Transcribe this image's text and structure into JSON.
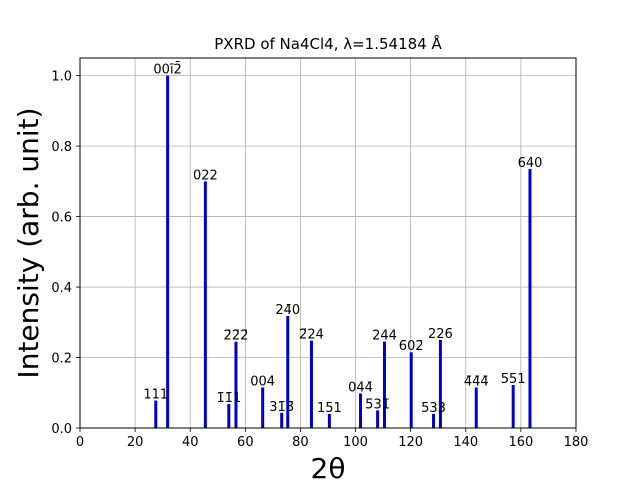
{
  "chart_data": {
    "type": "bar",
    "title": "PXRD of Na4Cl4, λ=1.54184 Å",
    "xlabel": "2θ",
    "ylabel": "Intensity (arb. unit)",
    "xlim": [
      0,
      180
    ],
    "ylim": [
      0,
      1.05
    ],
    "xticks": [
      0,
      20,
      40,
      60,
      80,
      100,
      120,
      140,
      160,
      180
    ],
    "yticks": [
      0.0,
      0.2,
      0.4,
      0.6,
      0.8,
      1.0
    ],
    "xtick_labels": [
      "0",
      "20",
      "40",
      "60",
      "80",
      "100",
      "120",
      "140",
      "160",
      "180"
    ],
    "ytick_labels": [
      "0.0",
      "0.2",
      "0.4",
      "0.6",
      "0.8",
      "1.0"
    ],
    "grid": true,
    "bar_color": "#0000cc",
    "peaks": [
      {
        "x": 27.5,
        "y": 0.078,
        "label": "111"
      },
      {
        "x": 31.8,
        "y": 1.0,
        "label": "00ī2̄"
      },
      {
        "x": 45.5,
        "y": 0.7,
        "label": "022"
      },
      {
        "x": 54.0,
        "y": 0.068,
        "label": "1̄1̄1"
      },
      {
        "x": 56.6,
        "y": 0.245,
        "label": "2̄2̄2̄"
      },
      {
        "x": 66.3,
        "y": 0.115,
        "label": "004"
      },
      {
        "x": 73.2,
        "y": 0.043,
        "label": "31̄3̄"
      },
      {
        "x": 75.4,
        "y": 0.318,
        "label": "24̄0"
      },
      {
        "x": 84.0,
        "y": 0.248,
        "label": "2̄24"
      },
      {
        "x": 90.5,
        "y": 0.04,
        "label": "151"
      },
      {
        "x": 101.8,
        "y": 0.098,
        "label": "044̄"
      },
      {
        "x": 108.0,
        "y": 0.05,
        "label": "5̄31̄"
      },
      {
        "x": 110.5,
        "y": 0.245,
        "label": "244"
      },
      {
        "x": 120.2,
        "y": 0.215,
        "label": "6̄02̄"
      },
      {
        "x": 128.3,
        "y": 0.04,
        "label": "533"
      },
      {
        "x": 130.8,
        "y": 0.25,
        "label": "226̄"
      },
      {
        "x": 143.8,
        "y": 0.115,
        "label": "4̄4̄4̄"
      },
      {
        "x": 157.2,
        "y": 0.122,
        "label": "5̄5̄1"
      },
      {
        "x": 163.3,
        "y": 0.735,
        "label": "6̄40"
      }
    ]
  }
}
